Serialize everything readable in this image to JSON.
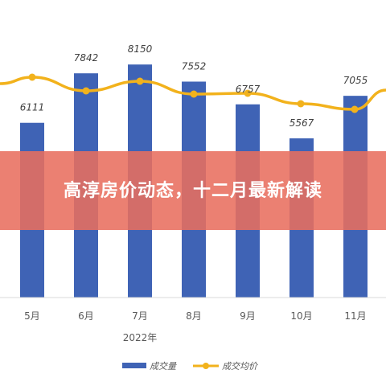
{
  "banner": {
    "title": "高淳房价动态，十二月最新解读"
  },
  "chart_data": {
    "type": "bar",
    "categories": [
      "5月",
      "6月",
      "7月",
      "8月",
      "9月",
      "10月",
      "11月"
    ],
    "year_label": "2022年",
    "series": [
      {
        "name": "成交量",
        "type": "bar",
        "color": "#3f63b5",
        "values": [
          6111,
          7842,
          8150,
          7552,
          6757,
          5567,
          7055
        ]
      },
      {
        "name": "成交均价",
        "type": "line",
        "color": "#f2b21c",
        "values": [
          null,
          null,
          null,
          null,
          null,
          null,
          null
        ]
      }
    ],
    "bar_value_labels": [
      "6111",
      "7842",
      "8150",
      "7552",
      "6757",
      "5567",
      "7055"
    ],
    "ylim": [
      0,
      9000
    ],
    "grid": false,
    "legend_position": "bottom"
  }
}
